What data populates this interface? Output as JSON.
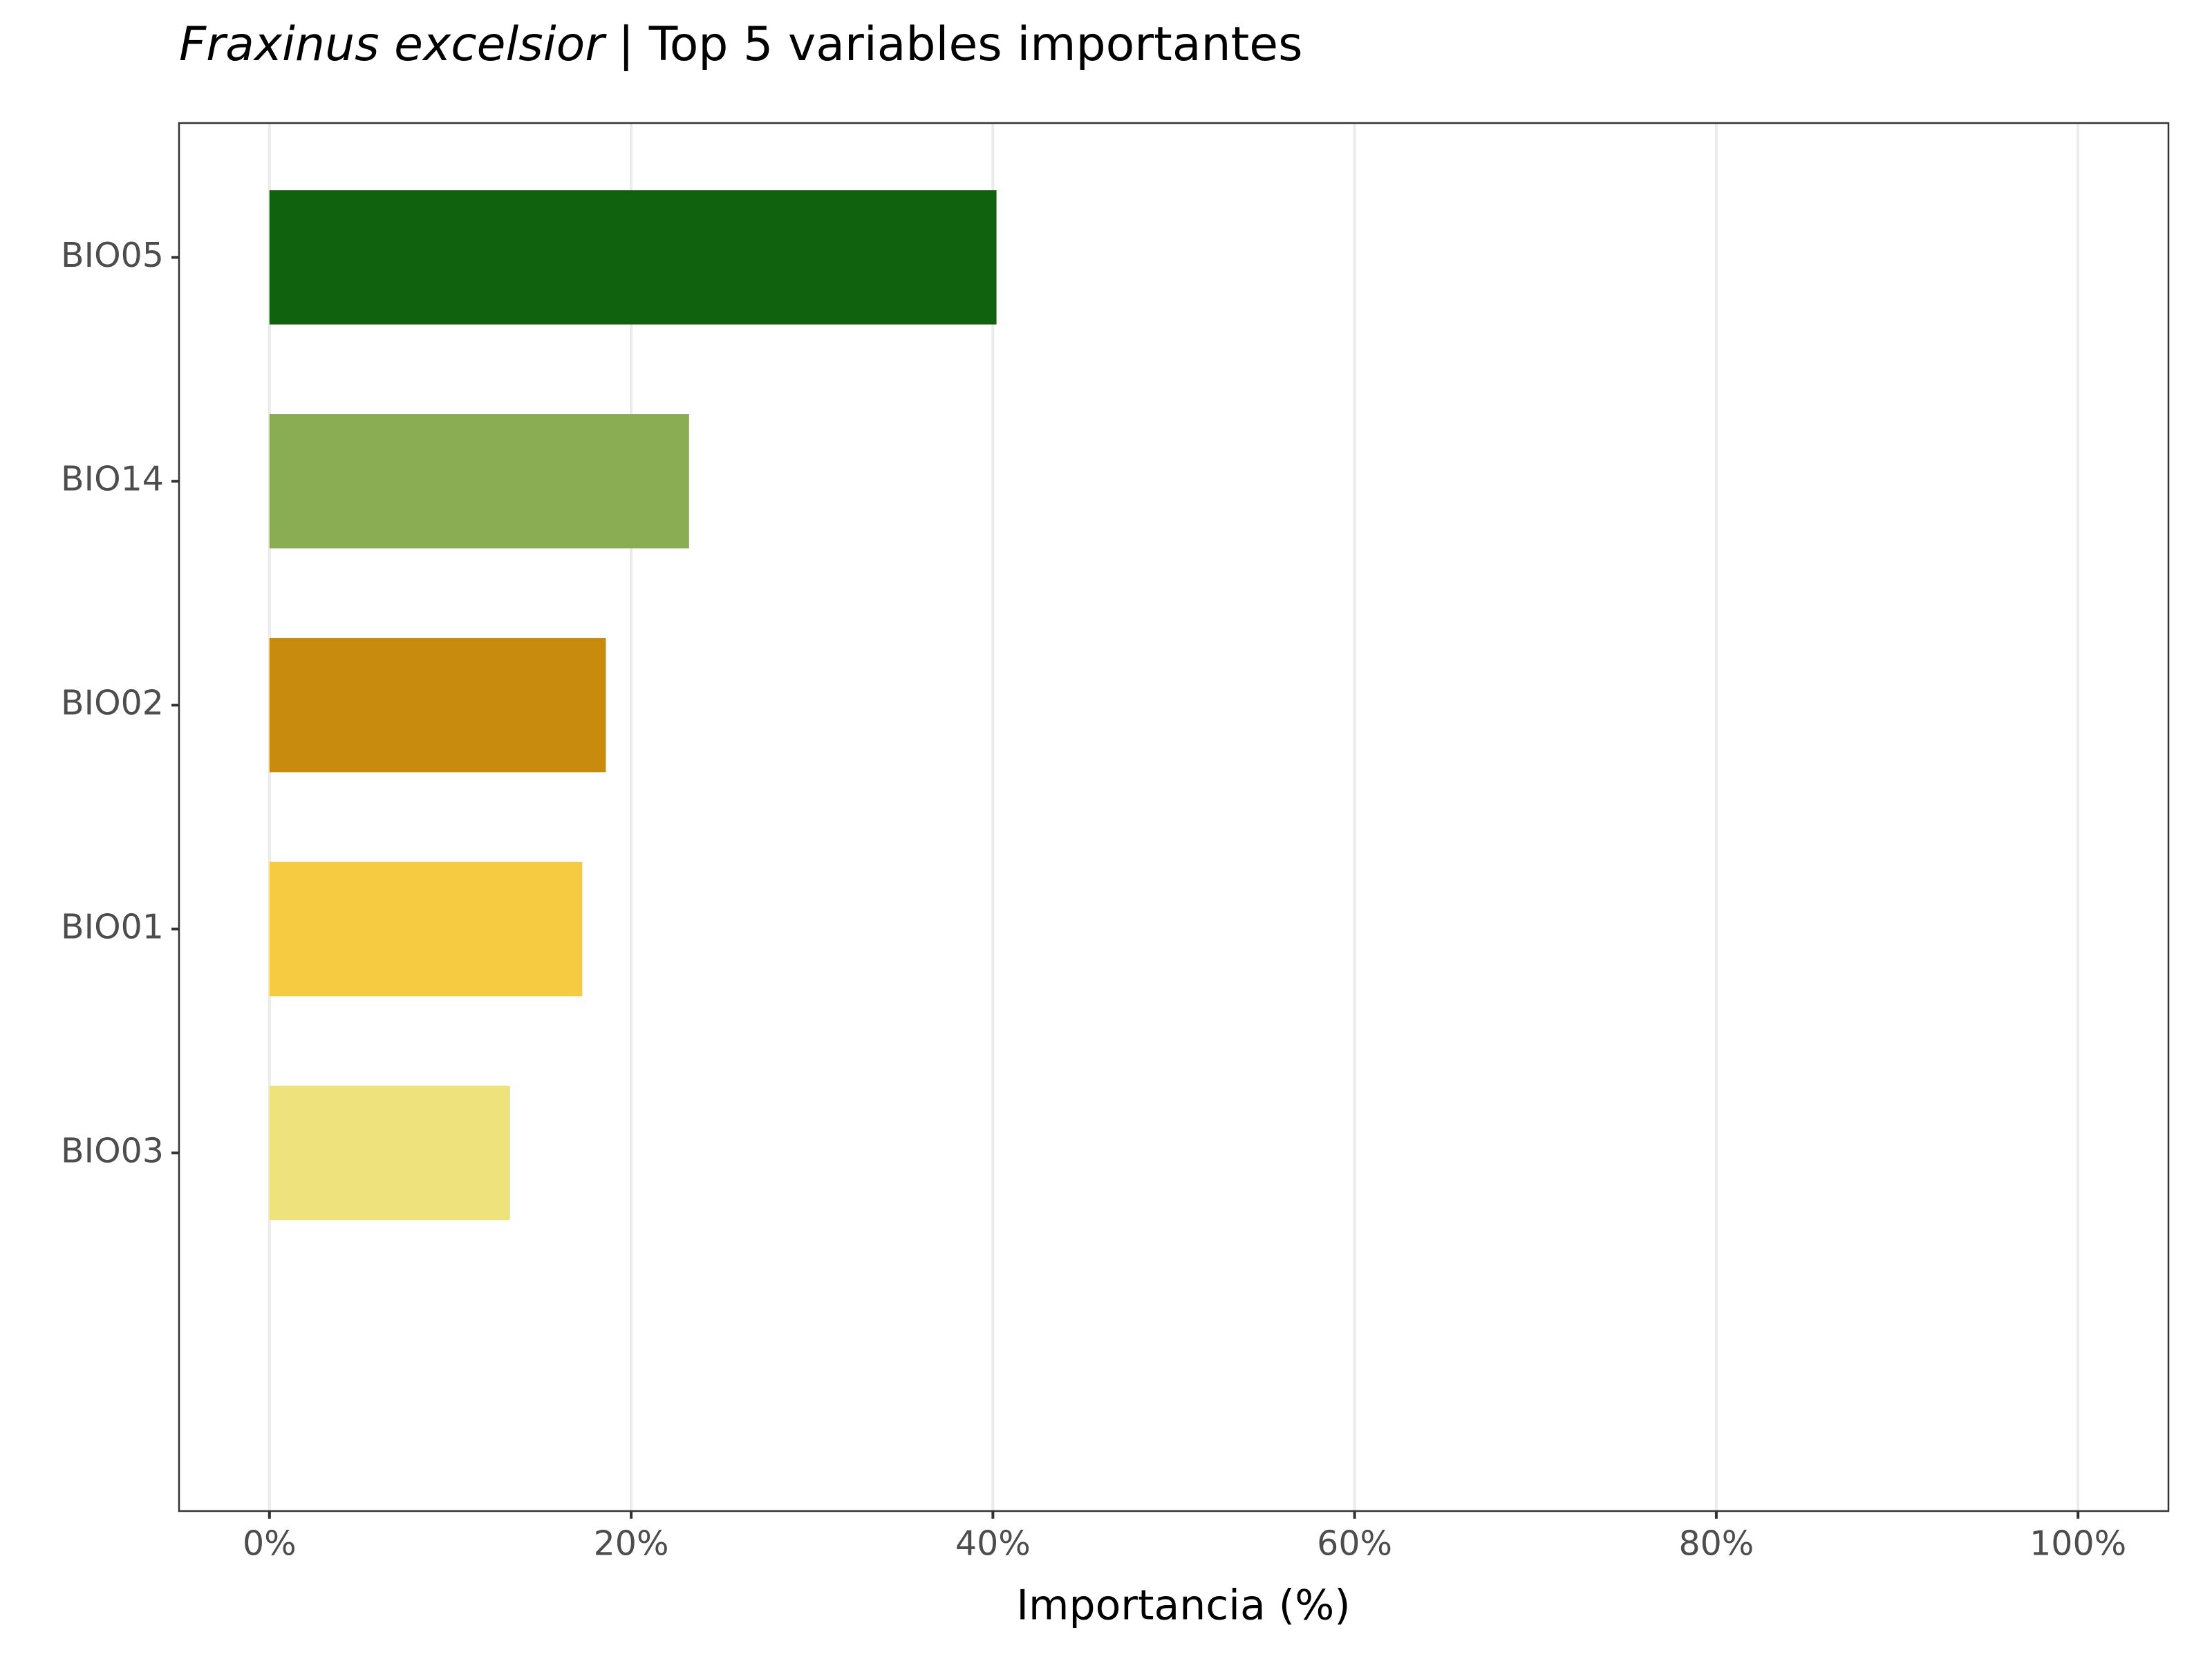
{
  "chart_data": {
    "type": "barh",
    "title_italic": "Fraxinus excelsior",
    "title": "| Top 5 variables importantes",
    "x_label": "Importancia (%)",
    "categories": [
      "BIO05",
      "BIO14",
      "BIO02",
      "BIO01",
      "BIO03"
    ],
    "values": [
      40.2,
      23.2,
      18.6,
      17.3,
      13.3
    ],
    "colors": [
      "#11620f",
      "#8aad54",
      "#c98b0e",
      "#f6cb42",
      "#eee27c"
    ],
    "xlim": [
      -5,
      105
    ],
    "xticks": [
      {
        "value": 0,
        "label": "0%"
      },
      {
        "value": 20,
        "label": "20%"
      },
      {
        "value": 40,
        "label": "40%"
      },
      {
        "value": 60,
        "label": "60%"
      },
      {
        "value": 80,
        "label": "80%"
      },
      {
        "value": 100,
        "label": "100%"
      }
    ],
    "grid": true
  }
}
